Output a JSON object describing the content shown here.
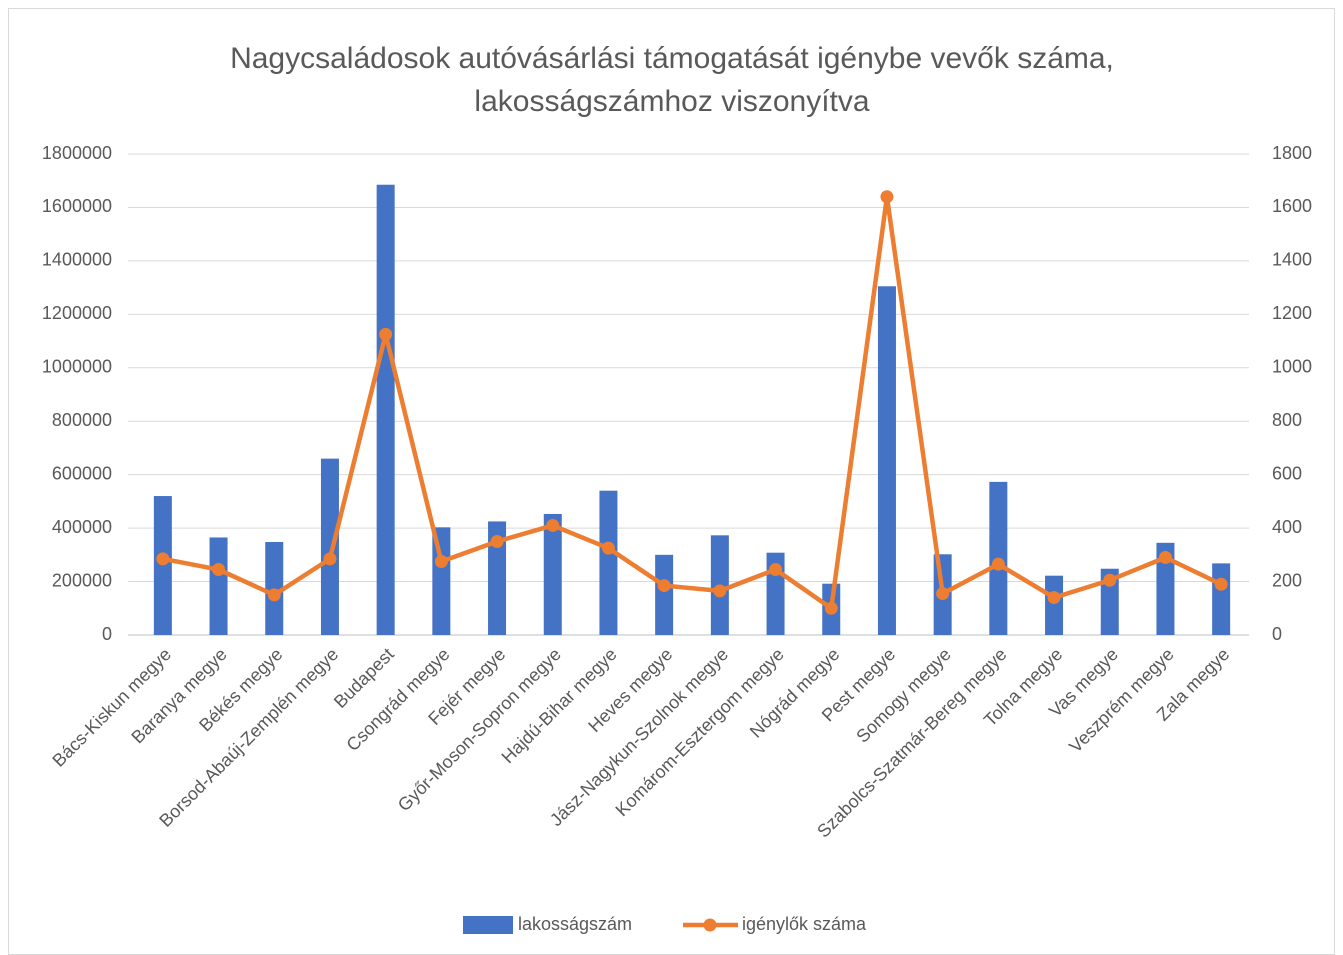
{
  "chart_data": {
    "type": "bar_line",
    "title": [
      "Nagycsaládosok autóvásárlási támogatását igénybe vevők száma,",
      "lakosságszámhoz viszonyítva"
    ],
    "categories": [
      "Bács-Kiskun megye",
      "Baranya megye",
      "Békés megye",
      "Borsod-Abaúj-Zemplén megye",
      "Budapest",
      "Csongrád megye",
      "Fejér megye",
      "Győr-Moson-Sopron megye",
      "Hajdú-Bihar megye",
      "Heves megye",
      "Jász-Nagykun-Szolnok megye",
      "Komárom-Esztergom megye",
      "Nógrád megye",
      "Pest megye",
      "Somogy megye",
      "Szabolcs-Szatmár-Bereg megye",
      "Tolna megye",
      "Vas megye",
      "Veszprém megye",
      "Zala megye"
    ],
    "series": [
      {
        "name": "lakosságszám",
        "type": "bar",
        "color": "#4472c4",
        "values": [
          520000,
          365000,
          348000,
          660000,
          1685000,
          403000,
          425000,
          453000,
          540000,
          300000,
          373000,
          308000,
          192000,
          1305000,
          302000,
          573000,
          222000,
          248000,
          345000,
          268000
        ]
      },
      {
        "name": "igénylők száma",
        "type": "line",
        "axis": "y2",
        "color": "#ed7d31",
        "values": [
          285,
          245,
          150,
          285,
          1125,
          275,
          350,
          410,
          325,
          185,
          165,
          245,
          100,
          1640,
          155,
          265,
          140,
          205,
          290,
          190
        ]
      }
    ],
    "ylim": [
      0,
      1800000
    ],
    "yticks": [
      0,
      200000,
      400000,
      600000,
      800000,
      1000000,
      1200000,
      1400000,
      1600000,
      1800000
    ],
    "y2lim": [
      0,
      1800
    ],
    "y2ticks": [
      0,
      200,
      400,
      600,
      800,
      1000,
      1200,
      1400,
      1600,
      1800
    ],
    "grid": true,
    "legend": "bottom"
  }
}
